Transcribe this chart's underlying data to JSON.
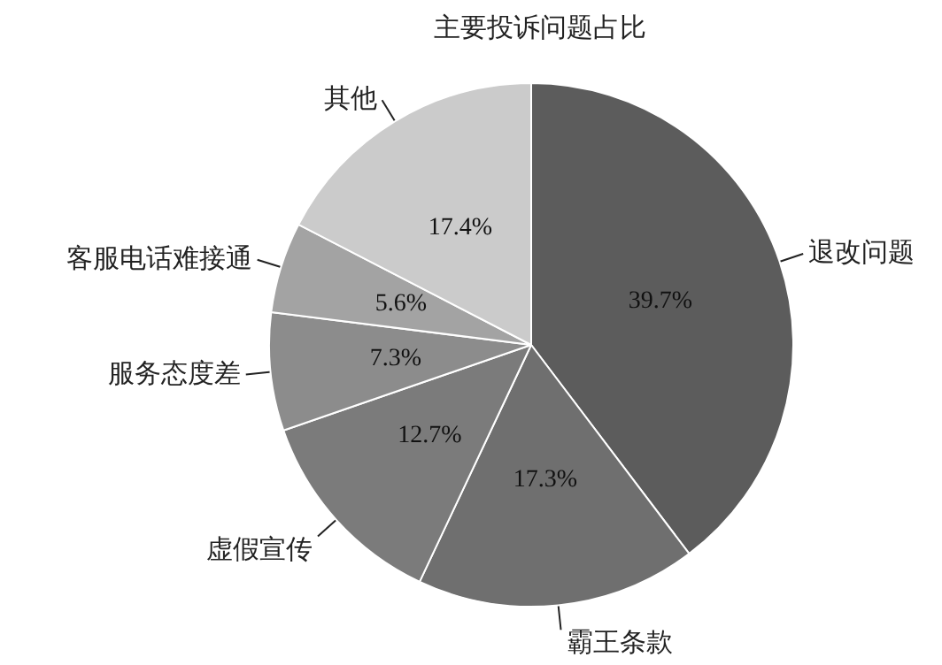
{
  "chart_data": {
    "type": "pie",
    "title": "主要投诉问题占比",
    "categories": [
      "退改问题",
      "霸王条款",
      "虚假宣传",
      "服务态度差",
      "客服电话难接通",
      "其他"
    ],
    "values": [
      39.7,
      17.3,
      12.7,
      7.3,
      5.6,
      17.4
    ],
    "colors": [
      "#5c5c5c",
      "#6f6f6f",
      "#7b7b7b",
      "#8c8c8c",
      "#a3a3a3",
      "#cbcbcb"
    ],
    "value_labels": [
      "39.7%",
      "17.3%",
      "12.7%",
      "7.3%",
      "5.6%",
      "17.4%"
    ]
  }
}
